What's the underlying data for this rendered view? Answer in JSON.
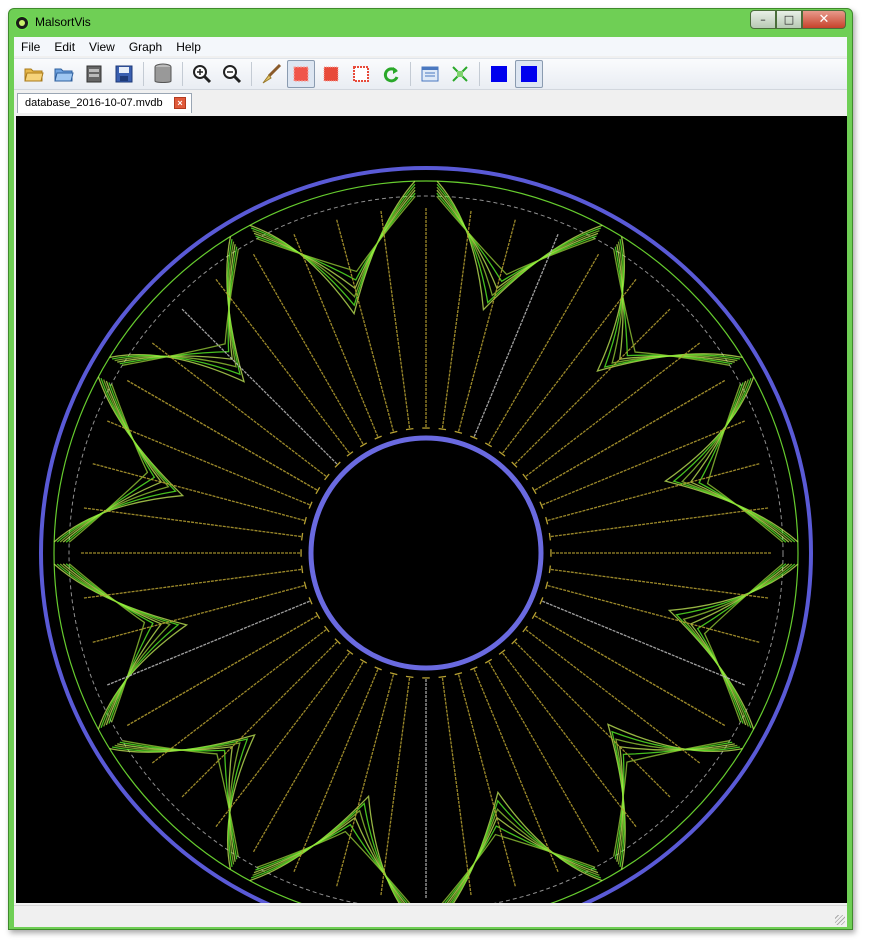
{
  "window": {
    "title": "MalsortVis",
    "minimize": "–",
    "maximize": "□",
    "close": "✕"
  },
  "menu": [
    "File",
    "Edit",
    "View",
    "Graph",
    "Help"
  ],
  "toolbar": [
    {
      "name": "open-folder",
      "icon": "open-folder-icon"
    },
    {
      "name": "open-recent",
      "icon": "open-blue-folder-icon"
    },
    {
      "name": "import",
      "icon": "stack-icon"
    },
    {
      "name": "save",
      "icon": "floppy-disk-icon"
    },
    {
      "name": "database",
      "icon": "database-icon"
    },
    {
      "name": "zoom-in",
      "icon": "zoom-in-icon"
    },
    {
      "name": "zoom-out",
      "icon": "zoom-out-icon"
    },
    {
      "name": "brush",
      "icon": "brush-icon"
    },
    {
      "name": "select-fill",
      "icon": "red-square-icon",
      "pressed": true
    },
    {
      "name": "select-dots",
      "icon": "dotted-square-icon"
    },
    {
      "name": "select-outline",
      "icon": "outline-square-icon"
    },
    {
      "name": "refresh",
      "icon": "refresh-icon"
    },
    {
      "name": "panel",
      "icon": "panel-icon"
    },
    {
      "name": "fit",
      "icon": "fit-arrows-icon"
    },
    {
      "name": "color-blue",
      "icon": "blue-square-icon"
    },
    {
      "name": "color-blue-selected",
      "icon": "blue-square-icon",
      "pressed": true
    }
  ],
  "tab": {
    "label": "database_2016-10-07.mvdb",
    "close": "×"
  },
  "graph": {
    "spokes": 48,
    "outer_ring": "#5a5ad6",
    "inner_ring": "#6a6ae0",
    "spoke_color": "#b8a232",
    "bundle_color": "#5cff2a"
  }
}
